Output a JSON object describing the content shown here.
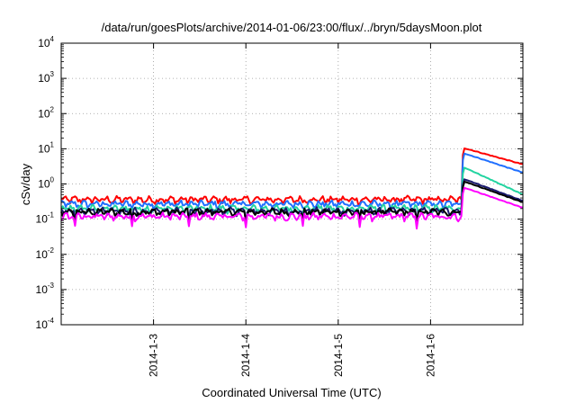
{
  "chart_data": {
    "type": "line",
    "title": "/data/run/goesPlots/archive/2014-01-06/23:00/flux/../bryn/5daysMoon.plot",
    "xlabel": "Coordinated Universal Time (UTC)",
    "ylabel": "cSv/day",
    "y_scale": "log",
    "ylim": [
      0.0001,
      10000
    ],
    "y_ticks": [
      {
        "base": "10",
        "exp": "-4",
        "value": 0.0001
      },
      {
        "base": "10",
        "exp": "-3",
        "value": 0.001
      },
      {
        "base": "10",
        "exp": "-2",
        "value": 0.01
      },
      {
        "base": "10",
        "exp": "-1",
        "value": 0.1
      },
      {
        "base": "10",
        "exp": "0",
        "value": 1
      },
      {
        "base": "10",
        "exp": "1",
        "value": 10
      },
      {
        "base": "10",
        "exp": "2",
        "value": 100
      },
      {
        "base": "10",
        "exp": "3",
        "value": 1000
      },
      {
        "base": "10",
        "exp": "4",
        "value": 10000
      }
    ],
    "x_range_days": [
      "2014-01-02 00:00",
      "2014-01-07 00:00"
    ],
    "x_ticks": [
      "2014-1-3",
      "2014-1-4",
      "2014-1-5",
      "2014-1-6"
    ],
    "grid": true,
    "event_start": "2014-01-06 08:00",
    "series": [
      {
        "color": "#ff0000",
        "baseline": 0.36,
        "peak": 10.5,
        "end": 3.6
      },
      {
        "color": "#1f6fff",
        "baseline": 0.27,
        "peak": 7.5,
        "end": 2.1
      },
      {
        "color": "#22d4a0",
        "baseline": 0.2,
        "peak": 3.0,
        "end": 0.5
      },
      {
        "color": "#1a1a6e",
        "baseline": 0.17,
        "peak": 1.4,
        "end": 0.33
      },
      {
        "color": "#000000",
        "baseline": 0.16,
        "peak": 1.2,
        "end": 0.3
      },
      {
        "color": "#ff00ff",
        "baseline": 0.12,
        "peak": 0.8,
        "end": 0.21
      }
    ]
  }
}
